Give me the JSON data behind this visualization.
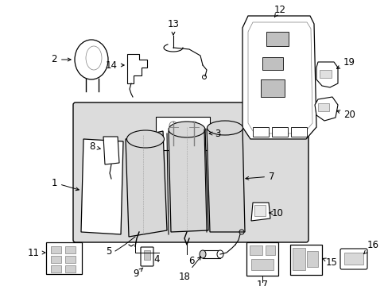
{
  "background_color": "#ffffff",
  "line_color": "#333333",
  "seat_fill": "#d8d8d8",
  "diagram_bg": "#e0e0e0",
  "font_size": 8.5
}
